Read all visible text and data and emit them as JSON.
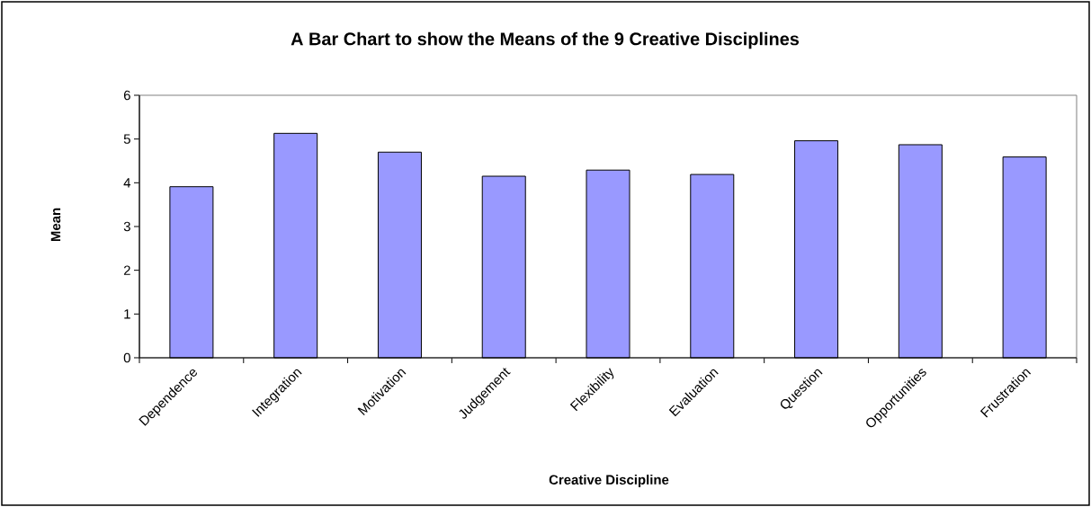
{
  "chart_data": {
    "type": "bar",
    "title": "A Bar Chart to show the Means of the 9 Creative Disciplines",
    "xlabel": "Creative Discipline",
    "ylabel": "Mean",
    "categories": [
      "Dependence",
      "Integration",
      "Motivation",
      "Judgement",
      "Flexibility",
      "Evaluation",
      "Question",
      "Opportunities",
      "Frustration"
    ],
    "values": [
      3.91,
      5.13,
      4.7,
      4.15,
      4.29,
      4.19,
      4.96,
      4.87,
      4.59
    ],
    "color": "#9999ff",
    "ylim": [
      0,
      6
    ],
    "yticks": [
      0,
      1,
      2,
      3,
      4,
      5,
      6
    ]
  }
}
